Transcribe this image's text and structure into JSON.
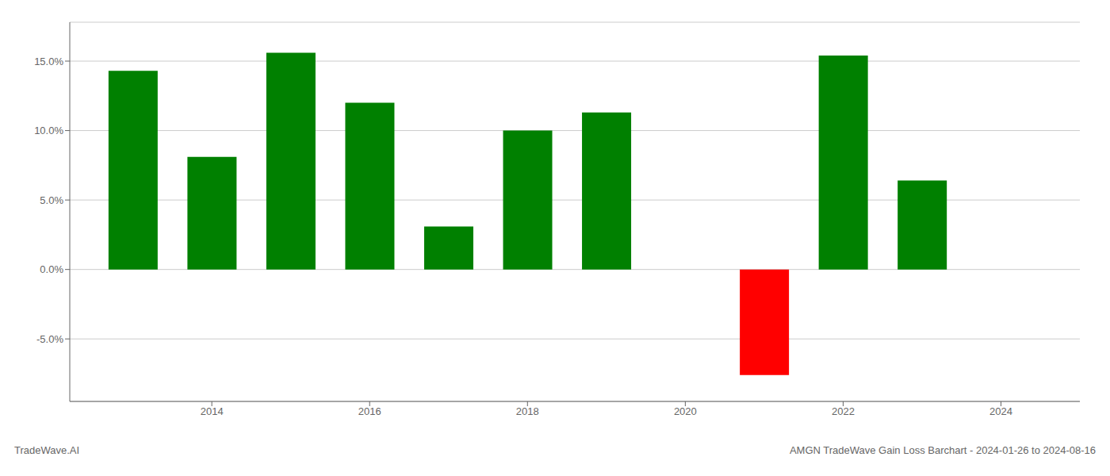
{
  "chart_data": {
    "type": "bar",
    "x": [
      2013,
      2014,
      2015,
      2016,
      2017,
      2018,
      2019,
      2021,
      2022,
      2023
    ],
    "values": [
      0.143,
      0.081,
      0.156,
      0.12,
      0.031,
      0.1,
      0.113,
      -0.076,
      0.154,
      0.064
    ],
    "colors": [
      "#008000",
      "#008000",
      "#008000",
      "#008000",
      "#008000",
      "#008000",
      "#008000",
      "#ff0000",
      "#008000",
      "#008000"
    ],
    "xlim": [
      2012.2,
      2025.0
    ],
    "ylim": [
      -0.095,
      0.178
    ],
    "xticks": [
      2014,
      2016,
      2018,
      2020,
      2022,
      2024
    ],
    "yticks": [
      {
        "value": -0.05,
        "label": "-5.0%"
      },
      {
        "value": 0.0,
        "label": "0.0%"
      },
      {
        "value": 0.05,
        "label": "5.0%"
      },
      {
        "value": 0.1,
        "label": "10.0%"
      },
      {
        "value": 0.15,
        "label": "15.0%"
      }
    ],
    "grid": true,
    "annotations": [
      "TradeWave.AI",
      "AMGN TradeWave Gain Loss Barchart - 2024-01-26 to 2024-08-16"
    ]
  }
}
